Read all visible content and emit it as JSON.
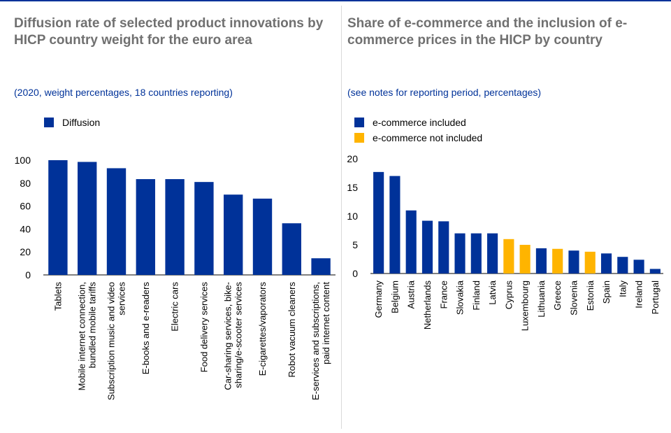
{
  "colors": {
    "included": "#003299",
    "not_included": "#FFB400",
    "title": "#707070",
    "subtitle": "#003299",
    "axis": "#000000",
    "divider": "#D9D9D9"
  },
  "chart_data": [
    {
      "type": "bar",
      "title": "Diffusion rate of selected product innovations by HICP country weight for the euro area",
      "subtitle": "(2020, weight percentages, 18 countries reporting)",
      "legend": [
        "Diffusion"
      ],
      "categories": [
        [
          "Tablets"
        ],
        [
          "Mobile internet connection,",
          "bundled mobile tariffs"
        ],
        [
          "Subscription music and video",
          "services"
        ],
        [
          "E-books and e-readers"
        ],
        [
          "Electric cars"
        ],
        [
          "Food delivery services"
        ],
        [
          "Car-sharing services, bike-",
          "sharing/e-scooter services"
        ],
        [
          "E-cigarettes/vaporators"
        ],
        [
          "Robot vacuum cleaners"
        ],
        [
          "E-services and subscriptions,",
          "paid internet content"
        ]
      ],
      "series": [
        {
          "name": "Diffusion",
          "values": [
            100,
            98.5,
            93,
            83.5,
            83.5,
            81,
            70,
            66.5,
            45,
            14.5
          ]
        }
      ],
      "ylim": [
        0,
        100
      ],
      "yticks": [
        0,
        20,
        40,
        60,
        80,
        100
      ],
      "grid": false,
      "legend_position": "top-left"
    },
    {
      "type": "bar",
      "title": "Share of e-commerce and the inclusion of e-commerce prices in the HICP by country",
      "subtitle": "(see notes for reporting period, percentages)",
      "legend": [
        "e-commerce included",
        "e-commerce not included"
      ],
      "categories": [
        "Germany",
        "Belgium",
        "Austria",
        "Netherlands",
        "France",
        "Slovakia",
        "Finland",
        "Latvia",
        "Cyprus",
        "Luxembourg",
        "Lithuania",
        "Greece",
        "Slovenia",
        "Estonia",
        "Spain",
        "Italy",
        "Ireland",
        "Portugal"
      ],
      "series": [
        {
          "name": "e-commerce",
          "values": [
            17.7,
            17.0,
            11.0,
            9.2,
            9.1,
            7.0,
            7.0,
            7.0,
            6.0,
            5.0,
            4.4,
            4.3,
            4.0,
            3.8,
            3.5,
            2.9,
            2.4,
            0.8
          ]
        }
      ],
      "included": [
        true,
        true,
        true,
        true,
        true,
        true,
        true,
        true,
        false,
        false,
        true,
        false,
        true,
        false,
        true,
        true,
        true,
        true
      ],
      "ylim": [
        0,
        20
      ],
      "yticks": [
        0,
        5,
        10,
        15,
        20
      ],
      "grid": false,
      "legend_position": "top-left"
    }
  ]
}
